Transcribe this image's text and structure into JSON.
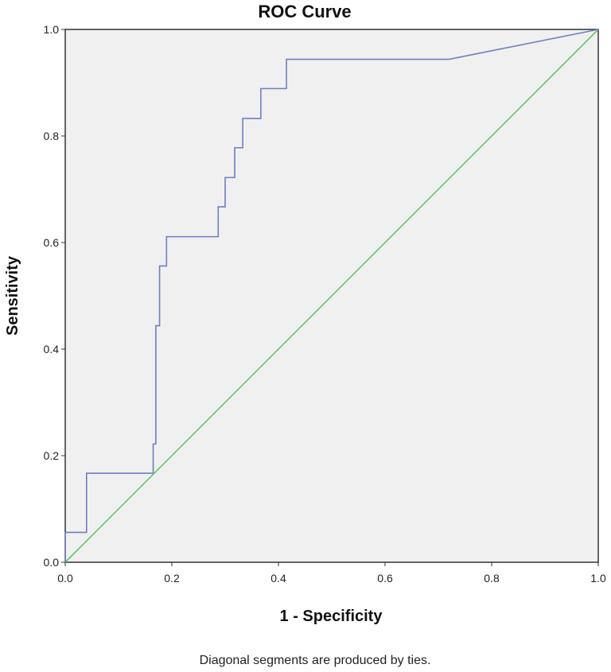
{
  "chart_data": {
    "type": "line",
    "title": "ROC Curve",
    "xlabel": "1 - Specificity",
    "ylabel": "Sensitivity",
    "xlim": [
      0.0,
      1.0
    ],
    "ylim": [
      0.0,
      1.0
    ],
    "x_ticks": [
      "0.0",
      "0.2",
      "0.4",
      "0.6",
      "0.8",
      "1.0"
    ],
    "y_ticks": [
      "0.0",
      "0.2",
      "0.4",
      "0.6",
      "0.8",
      "1.0"
    ],
    "grid": false,
    "legend": "none",
    "footnote": "Diagonal segments are produced by ties.",
    "series": [
      {
        "color": "#6f7fbf",
        "points": [
          [
            0.0,
            0.0
          ],
          [
            0.0,
            0.056
          ],
          [
            0.04,
            0.056
          ],
          [
            0.04,
            0.167
          ],
          [
            0.165,
            0.167
          ],
          [
            0.165,
            0.222
          ],
          [
            0.17,
            0.222
          ],
          [
            0.17,
            0.444
          ],
          [
            0.177,
            0.444
          ],
          [
            0.177,
            0.556
          ],
          [
            0.19,
            0.556
          ],
          [
            0.19,
            0.611
          ],
          [
            0.287,
            0.611
          ],
          [
            0.287,
            0.667
          ],
          [
            0.3,
            0.667
          ],
          [
            0.3,
            0.722
          ],
          [
            0.318,
            0.722
          ],
          [
            0.318,
            0.778
          ],
          [
            0.333,
            0.778
          ],
          [
            0.333,
            0.833
          ],
          [
            0.367,
            0.833
          ],
          [
            0.367,
            0.889
          ],
          [
            0.415,
            0.889
          ],
          [
            0.415,
            0.944
          ],
          [
            0.72,
            0.944
          ],
          [
            1.0,
            1.0
          ]
        ]
      },
      {
        "color": "#5fca6a",
        "points": [
          [
            0.0,
            0.0
          ],
          [
            1.0,
            1.0
          ]
        ]
      }
    ]
  }
}
